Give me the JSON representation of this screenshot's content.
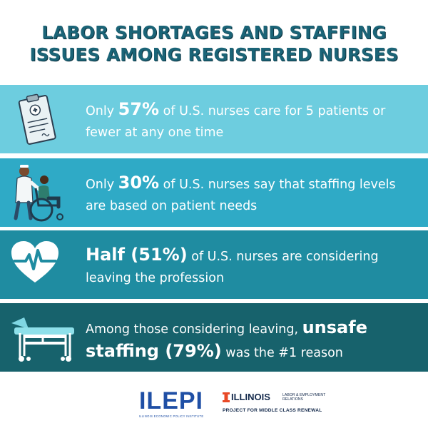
{
  "title": {
    "line1": "LABOR SHORTAGES AND STAFFING",
    "line2": "ISSUES AMONG REGISTERED NURSES"
  },
  "stats": [
    {
      "icon": "clipboard-icon",
      "line1_pre": "Only ",
      "line1_big": "57%",
      "line1_post": " of U.S. nurses care for 5 patients or",
      "line2": "fewer at any one time"
    },
    {
      "icon": "nurse-wheelchair-icon",
      "line1_pre": "Only ",
      "line1_big": "30%",
      "line1_post": " of U.S. nurses say that staffing levels",
      "line2": "are based on patient needs"
    },
    {
      "icon": "heartbeat-icon",
      "line1_big": "Half (51%)",
      "line1_post": " of U.S. nurses are considering",
      "line2": "leaving the profession"
    },
    {
      "icon": "hospital-bed-icon",
      "line1_pre": "Among those considering leaving, ",
      "line1_big": "unsafe",
      "line2_big": "staffing (79%)",
      "line2_post": " was the #1 reason"
    }
  ],
  "footer": {
    "ilepi_logo": "ILEPI",
    "ilepi_subtitle": "ILLINOIS ECONOMIC POLICY INSTITUTE",
    "uiuc_name": "ILLINOIS",
    "uiuc_dept_line1": "LABOR & EMPLOYMENT",
    "uiuc_dept_line2": "RELATIONS",
    "uiuc_project": "PROJECT FOR MIDDLE CLASS RENEWAL"
  },
  "colors": {
    "title": "#1b6477",
    "band1": "#6dcddf",
    "band2": "#2faac6",
    "band3": "#1f8ca1",
    "band4": "#17626c",
    "ilepi_blue": "#1f4fa5",
    "illinois_orange": "#e84a27",
    "illinois_navy": "#13294b"
  }
}
